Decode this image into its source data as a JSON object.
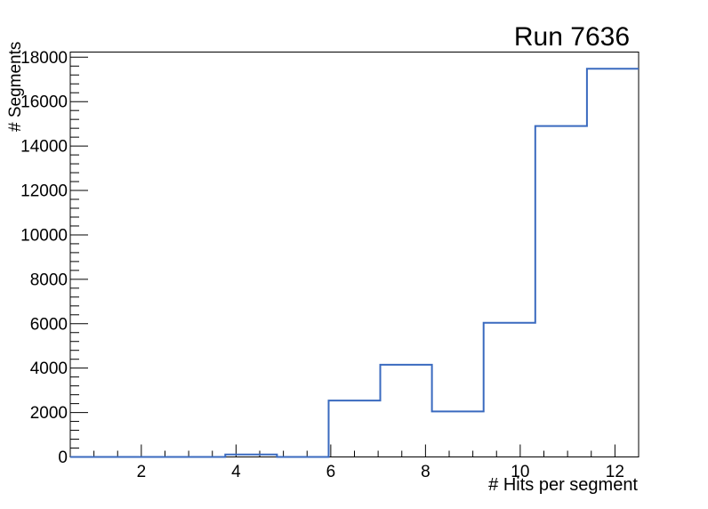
{
  "title": "Run 7636",
  "colors": {
    "hist_line": "#3a6abf",
    "axis": "#000000",
    "background": "#ffffff",
    "text": "#000000"
  },
  "chart_data": {
    "type": "histogram-step",
    "title": "Run 7636",
    "xlabel": "# Hits per segment",
    "ylabel": "# Segments",
    "xlim": [
      0.5,
      12.5
    ],
    "ylim": [
      0,
      18232
    ],
    "n_bins": 11,
    "bin_edges": [
      0.5,
      1.591,
      2.682,
      3.773,
      4.864,
      5.955,
      7.045,
      8.136,
      9.227,
      10.318,
      11.409,
      12.5
    ],
    "bin_values": [
      0,
      0,
      0,
      110,
      0,
      2540,
      4150,
      2050,
      6040,
      14900,
      17480
    ],
    "x_major_ticks": [
      2,
      4,
      6,
      8,
      10,
      12
    ],
    "x_major_tick_labels": [
      "2",
      "4",
      "6",
      "8",
      "10",
      "12"
    ],
    "x_minor_step": 0.5,
    "y_major_step": 2000,
    "y_minor_step": 400,
    "y_major_tick_labels": [
      "0",
      "2000",
      "4000",
      "6000",
      "8000",
      "10000",
      "12000",
      "14000",
      "16000",
      "18000"
    ],
    "grid": false,
    "legend": null,
    "line_width": 2
  }
}
